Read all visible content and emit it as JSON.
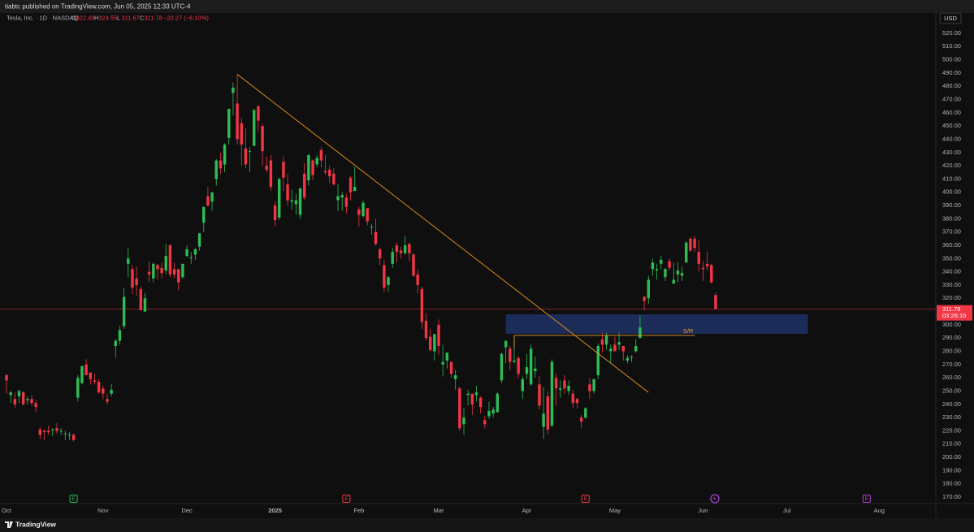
{
  "header": {
    "published": "tiabtc published on TradingView.com, Jun 05, 2025 12:33 UTC-4",
    "brand": "TradingView"
  },
  "chart_data": {
    "type": "candlestick",
    "symbol": "Tesla, Inc. · 1D · NASDAQ",
    "ohlc_prefixes": [
      "O",
      "H",
      "L",
      "C"
    ],
    "change_label": "−20.27 (−6.10%)",
    "countdown": "03:26:10",
    "currency": "USD",
    "up_color": "#2ebd55",
    "down_color": "#f23645",
    "candles": [
      [
        262,
        263,
        248,
        258
      ],
      [
        247,
        250,
        241,
        249
      ],
      [
        244,
        249,
        237,
        240
      ],
      [
        246,
        251,
        241,
        250
      ],
      [
        249,
        250,
        239,
        240
      ],
      [
        243,
        246,
        240,
        244
      ],
      [
        244,
        247,
        239,
        241
      ],
      [
        241,
        243,
        234,
        238
      ],
      [
        221,
        223,
        214,
        217
      ],
      [
        220,
        221,
        213,
        219
      ],
      [
        220,
        224,
        217,
        219
      ],
      [
        221,
        222,
        216,
        221
      ],
      [
        222,
        226,
        218,
        220
      ],
      [
        220,
        222,
        217,
        220
      ],
      [
        218,
        220,
        213,
        218
      ],
      [
        217,
        219,
        213,
        217
      ],
      [
        217,
        218,
        212,
        213
      ],
      [
        245,
        262,
        242,
        260
      ],
      [
        256,
        269,
        255,
        269
      ],
      [
        270,
        274,
        262,
        262
      ],
      [
        264,
        264,
        255,
        259
      ],
      [
        258,
        263,
        255,
        257
      ],
      [
        257,
        259,
        248,
        249
      ],
      [
        252,
        254,
        244,
        248
      ],
      [
        244,
        248,
        240,
        242
      ],
      [
        248,
        255,
        246,
        251
      ],
      [
        284,
        289,
        275,
        288
      ],
      [
        288,
        299,
        285,
        296
      ],
      [
        299,
        328,
        297,
        321
      ],
      [
        346,
        358,
        336,
        350
      ],
      [
        342,
        345,
        323,
        328
      ],
      [
        335,
        344,
        322,
        330
      ],
      [
        327,
        329,
        311,
        311
      ],
      [
        310,
        324,
        310,
        320
      ],
      [
        340,
        348,
        332,
        338
      ],
      [
        335,
        347,
        332,
        346
      ],
      [
        345,
        346,
        334,
        342
      ],
      [
        343,
        347,
        335,
        339
      ],
      [
        341,
        361,
        338,
        352
      ],
      [
        360,
        361,
        336,
        338
      ],
      [
        342,
        347,
        335,
        338
      ],
      [
        342,
        342,
        326,
        332
      ],
      [
        336,
        346,
        335,
        346
      ],
      [
        352,
        360,
        351,
        357
      ],
      [
        351,
        355,
        346,
        351
      ],
      [
        353,
        358,
        349,
        357
      ],
      [
        359,
        369,
        356,
        369
      ],
      [
        377,
        389,
        370,
        389
      ],
      [
        397,
        404,
        389,
        390
      ],
      [
        393,
        400,
        386,
        400
      ],
      [
        410,
        425,
        405,
        424
      ],
      [
        424,
        430,
        414,
        418
      ],
      [
        421,
        437,
        415,
        436
      ],
      [
        441,
        463,
        436,
        463
      ],
      [
        475,
        483,
        458,
        479
      ],
      [
        467,
        489,
        436,
        440
      ],
      [
        452,
        456,
        420,
        436
      ],
      [
        433,
        448,
        418,
        421
      ],
      [
        431,
        434,
        415,
        431
      ],
      [
        435,
        463,
        435,
        462
      ],
      [
        465,
        465,
        446,
        454
      ],
      [
        450,
        452,
        420,
        431
      ],
      [
        420,
        427,
        415,
        417
      ],
      [
        424,
        428,
        401,
        404
      ],
      [
        390,
        393,
        374,
        379
      ],
      [
        381,
        411,
        379,
        410
      ],
      [
        423,
        427,
        401,
        411
      ],
      [
        406,
        414,
        390,
        394
      ],
      [
        393,
        402,
        387,
        394
      ],
      [
        391,
        399,
        383,
        394
      ],
      [
        383,
        403,
        380,
        403
      ],
      [
        414,
        422,
        394,
        396
      ],
      [
        409,
        429,
        405,
        428
      ],
      [
        424,
        425,
        409,
        413
      ],
      [
        421,
        428,
        419,
        426
      ],
      [
        432,
        434,
        419,
        424
      ],
      [
        416,
        428,
        413,
        415
      ],
      [
        417,
        420,
        407,
        412
      ],
      [
        414,
        418,
        405,
        406
      ],
      [
        394,
        406,
        386,
        397
      ],
      [
        396,
        400,
        386,
        398
      ],
      [
        396,
        399,
        384,
        389
      ],
      [
        411,
        412,
        394,
        400
      ],
      [
        401,
        419,
        401,
        404
      ],
      [
        387,
        389,
        374,
        383
      ],
      [
        382,
        394,
        381,
        392
      ],
      [
        388,
        388,
        375,
        378
      ],
      [
        374,
        376,
        368,
        374
      ],
      [
        370,
        380,
        360,
        361
      ],
      [
        357,
        358,
        345,
        350
      ],
      [
        345,
        349,
        325,
        328
      ],
      [
        330,
        337,
        325,
        336
      ],
      [
        346,
        358,
        343,
        355
      ],
      [
        360,
        362,
        347,
        355
      ],
      [
        356,
        359,
        350,
        354
      ],
      [
        354,
        367,
        353,
        360
      ],
      [
        361,
        362,
        348,
        354
      ],
      [
        353,
        354,
        336,
        337
      ],
      [
        338,
        342,
        324,
        330
      ],
      [
        327,
        329,
        297,
        302
      ],
      [
        303,
        309,
        288,
        290
      ],
      [
        291,
        297,
        280,
        281
      ],
      [
        280,
        293,
        273,
        293
      ],
      [
        300,
        304,
        277,
        284
      ],
      [
        270,
        285,
        261,
        272
      ],
      [
        273,
        279,
        267,
        279
      ],
      [
        272,
        272,
        260,
        263
      ],
      [
        259,
        266,
        251,
        262
      ],
      [
        252,
        253,
        220,
        222
      ],
      [
        225,
        237,
        217,
        230
      ],
      [
        247,
        251,
        239,
        248
      ],
      [
        248,
        248,
        232,
        240
      ],
      [
        247,
        254,
        242,
        249
      ],
      [
        245,
        246,
        233,
        238
      ],
      [
        228,
        231,
        222,
        225
      ],
      [
        231,
        242,
        229,
        235
      ],
      [
        233,
        238,
        230,
        236
      ],
      [
        234,
        249,
        234,
        248
      ],
      [
        258,
        279,
        256,
        278
      ],
      [
        283,
        288,
        271,
        288
      ],
      [
        282,
        284,
        266,
        272
      ],
      [
        272,
        292,
        271,
        273
      ],
      [
        275,
        276,
        260,
        263
      ],
      [
        250,
        261,
        244,
        259
      ],
      [
        263,
        278,
        259,
        268
      ],
      [
        255,
        285,
        254,
        282
      ],
      [
        265,
        276,
        260,
        267
      ],
      [
        255,
        261,
        236,
        239
      ],
      [
        223,
        253,
        214,
        233
      ],
      [
        246,
        250,
        217,
        221
      ],
      [
        224,
        274,
        223,
        272
      ],
      [
        260,
        263,
        239,
        252
      ],
      [
        251,
        258,
        245,
        252
      ],
      [
        258,
        262,
        248,
        252
      ],
      [
        250,
        258,
        247,
        254
      ],
      [
        248,
        251,
        237,
        241
      ],
      [
        244,
        245,
        237,
        241
      ],
      [
        230,
        232,
        222,
        227
      ],
      [
        230,
        238,
        229,
        237
      ],
      [
        255,
        260,
        244,
        250
      ],
      [
        250,
        259,
        248,
        259
      ],
      [
        262,
        286,
        259,
        284
      ],
      [
        289,
        294,
        279,
        285
      ],
      [
        285,
        294,
        281,
        292
      ],
      [
        280,
        285,
        271,
        282
      ],
      [
        285,
        291,
        280,
        280
      ],
      [
        285,
        294,
        281,
        287
      ],
      [
        284,
        284,
        273,
        280
      ],
      [
        273,
        277,
        271,
        275
      ],
      [
        276,
        277,
        272,
        276
      ],
      [
        280,
        289,
        279,
        284
      ],
      [
        290,
        307,
        290,
        298
      ],
      [
        321,
        322,
        311,
        318
      ],
      [
        320,
        337,
        316,
        334
      ],
      [
        342,
        350,
        337,
        347
      ],
      [
        341,
        346,
        334,
        342
      ],
      [
        346,
        352,
        342,
        349
      ],
      [
        336,
        343,
        333,
        342
      ],
      [
        348,
        350,
        341,
        343
      ],
      [
        331,
        347,
        331,
        334
      ],
      [
        338,
        347,
        332,
        341
      ],
      [
        337,
        344,
        333,
        339
      ],
      [
        347,
        363,
        347,
        362
      ],
      [
        365,
        366,
        355,
        356
      ],
      [
        365,
        367,
        355,
        358
      ],
      [
        355,
        364,
        340,
        346
      ],
      [
        343,
        348,
        333,
        342
      ],
      [
        346,
        355,
        341,
        344
      ],
      [
        345,
        346,
        331,
        332.05
      ],
      [
        322.49,
        324.55,
        311.67,
        311.78
      ]
    ],
    "xlim": [
      -1.55,
      221.1
    ],
    "xticks": [
      {
        "value": 0,
        "label": "Oct"
      },
      {
        "value": 23,
        "label": "Nov"
      },
      {
        "value": 43,
        "label": "Dec"
      },
      {
        "value": 64,
        "label": "2025"
      },
      {
        "value": 84,
        "label": "Feb"
      },
      {
        "value": 103,
        "label": "Mar"
      },
      {
        "value": 124,
        "label": "Apr"
      },
      {
        "value": 145,
        "label": "May"
      },
      {
        "value": 166,
        "label": "Jun"
      },
      {
        "value": 186,
        "label": "Jul"
      },
      {
        "value": 208,
        "label": "Aug"
      }
    ],
    "ylim": [
      165.1,
      526.7
    ],
    "yticks": [
      {
        "value": 520,
        "label": "520.00"
      },
      {
        "value": 510,
        "label": "510.00"
      },
      {
        "value": 500,
        "label": "500.00"
      },
      {
        "value": 490,
        "label": "490.00"
      },
      {
        "value": 480,
        "label": "480.00"
      },
      {
        "value": 470,
        "label": "470.00"
      },
      {
        "value": 460,
        "label": "460.00"
      },
      {
        "value": 450,
        "label": "450.00"
      },
      {
        "value": 440,
        "label": "440.00"
      },
      {
        "value": 430,
        "label": "430.00"
      },
      {
        "value": 420,
        "label": "420.00"
      },
      {
        "value": 410,
        "label": "410.00"
      },
      {
        "value": 400,
        "label": "400.00"
      },
      {
        "value": 390,
        "label": "390.00"
      },
      {
        "value": 380,
        "label": "380.00"
      },
      {
        "value": 370,
        "label": "370.00"
      },
      {
        "value": 360,
        "label": "360.00"
      },
      {
        "value": 350,
        "label": "350.00"
      },
      {
        "value": 340,
        "label": "340.00"
      },
      {
        "value": 330,
        "label": "330.00"
      },
      {
        "value": 320,
        "label": "320.00"
      },
      {
        "value": 310,
        "label": "310.00"
      },
      {
        "value": 300,
        "label": "300.00"
      },
      {
        "value": 290,
        "label": "290.00"
      },
      {
        "value": 280,
        "label": "280.00"
      },
      {
        "value": 270,
        "label": "270.00"
      },
      {
        "value": 260,
        "label": "260.00"
      },
      {
        "value": 250,
        "label": "250.00"
      },
      {
        "value": 240,
        "label": "240.00"
      },
      {
        "value": 230,
        "label": "230.00"
      },
      {
        "value": 220,
        "label": "220.00"
      },
      {
        "value": 210,
        "label": "210.00"
      },
      {
        "value": 200,
        "label": "200.00"
      },
      {
        "value": 190,
        "label": "190.00"
      },
      {
        "value": 180,
        "label": "180.00"
      },
      {
        "value": 170,
        "label": "170.00"
      }
    ],
    "grid": false,
    "trendline": {
      "x": [
        55,
        153
      ],
      "y": [
        489,
        249
      ],
      "color": "#f7931a"
    },
    "zone": {
      "x": [
        119,
        191
      ],
      "y": [
        293.2,
        307.9
      ],
      "color": "#1b2c58"
    },
    "sr_line": {
      "label": "S/R",
      "x": [
        121,
        164
      ],
      "y": 292,
      "color": "#e69a2e"
    },
    "events": [
      {
        "label": "E",
        "x": 16,
        "color": "#2ebd55"
      },
      {
        "label": "E",
        "x": 81,
        "color": "#f23645"
      },
      {
        "label": "E",
        "x": 138,
        "color": "#f23645"
      },
      {
        "label": "E",
        "x": 205,
        "color": "#b13fd8"
      }
    ]
  }
}
